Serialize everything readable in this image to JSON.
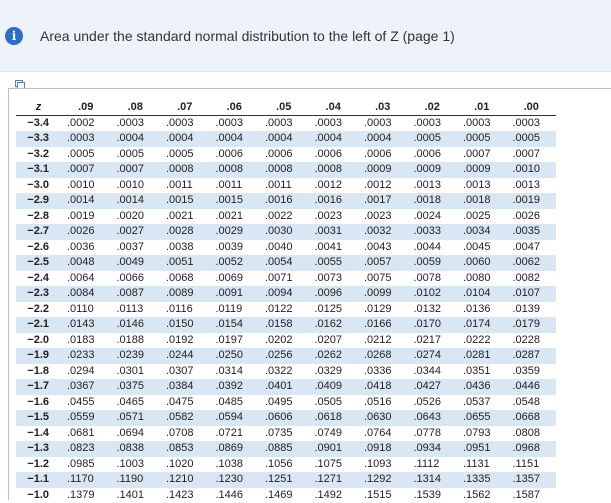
{
  "header": {
    "title": "Area under the standard normal distribution to the left of Z (page 1)",
    "icon": "info-icon",
    "accent": "#2c6fc7"
  },
  "table": {
    "columns": [
      "z",
      ".09",
      ".08",
      ".07",
      ".06",
      ".05",
      ".04",
      ".03",
      ".02",
      ".01",
      ".00"
    ],
    "rows": [
      [
        "−3.4",
        ".0002",
        ".0003",
        ".0003",
        ".0003",
        ".0003",
        ".0003",
        ".0003",
        ".0003",
        ".0003",
        ".0003"
      ],
      [
        "−3.3",
        ".0003",
        ".0004",
        ".0004",
        ".0004",
        ".0004",
        ".0004",
        ".0004",
        ".0005",
        ".0005",
        ".0005"
      ],
      [
        "−3.2",
        ".0005",
        ".0005",
        ".0005",
        ".0006",
        ".0006",
        ".0006",
        ".0006",
        ".0006",
        ".0007",
        ".0007"
      ],
      [
        "−3.1",
        ".0007",
        ".0007",
        ".0008",
        ".0008",
        ".0008",
        ".0008",
        ".0009",
        ".0009",
        ".0009",
        ".0010"
      ],
      [
        "−3.0",
        ".0010",
        ".0010",
        ".0011",
        ".0011",
        ".0011",
        ".0012",
        ".0012",
        ".0013",
        ".0013",
        ".0013"
      ],
      [
        "−2.9",
        ".0014",
        ".0014",
        ".0015",
        ".0015",
        ".0016",
        ".0016",
        ".0017",
        ".0018",
        ".0018",
        ".0019"
      ],
      [
        "−2.8",
        ".0019",
        ".0020",
        ".0021",
        ".0021",
        ".0022",
        ".0023",
        ".0023",
        ".0024",
        ".0025",
        ".0026"
      ],
      [
        "−2.7",
        ".0026",
        ".0027",
        ".0028",
        ".0029",
        ".0030",
        ".0031",
        ".0032",
        ".0033",
        ".0034",
        ".0035"
      ],
      [
        "−2.6",
        ".0036",
        ".0037",
        ".0038",
        ".0039",
        ".0040",
        ".0041",
        ".0043",
        ".0044",
        ".0045",
        ".0047"
      ],
      [
        "−2.5",
        ".0048",
        ".0049",
        ".0051",
        ".0052",
        ".0054",
        ".0055",
        ".0057",
        ".0059",
        ".0060",
        ".0062"
      ],
      [
        "−2.4",
        ".0064",
        ".0066",
        ".0068",
        ".0069",
        ".0071",
        ".0073",
        ".0075",
        ".0078",
        ".0080",
        ".0082"
      ],
      [
        "−2.3",
        ".0084",
        ".0087",
        ".0089",
        ".0091",
        ".0094",
        ".0096",
        ".0099",
        ".0102",
        ".0104",
        ".0107"
      ],
      [
        "−2.2",
        ".0110",
        ".0113",
        ".0116",
        ".0119",
        ".0122",
        ".0125",
        ".0129",
        ".0132",
        ".0136",
        ".0139"
      ],
      [
        "−2.1",
        ".0143",
        ".0146",
        ".0150",
        ".0154",
        ".0158",
        ".0162",
        ".0166",
        ".0170",
        ".0174",
        ".0179"
      ],
      [
        "−2.0",
        ".0183",
        ".0188",
        ".0192",
        ".0197",
        ".0202",
        ".0207",
        ".0212",
        ".0217",
        ".0222",
        ".0228"
      ],
      [
        "−1.9",
        ".0233",
        ".0239",
        ".0244",
        ".0250",
        ".0256",
        ".0262",
        ".0268",
        ".0274",
        ".0281",
        ".0287"
      ],
      [
        "−1.8",
        ".0294",
        ".0301",
        ".0307",
        ".0314",
        ".0322",
        ".0329",
        ".0336",
        ".0344",
        ".0351",
        ".0359"
      ],
      [
        "−1.7",
        ".0367",
        ".0375",
        ".0384",
        ".0392",
        ".0401",
        ".0409",
        ".0418",
        ".0427",
        ".0436",
        ".0446"
      ],
      [
        "−1.6",
        ".0455",
        ".0465",
        ".0475",
        ".0485",
        ".0495",
        ".0505",
        ".0516",
        ".0526",
        ".0537",
        ".0548"
      ],
      [
        "−1.5",
        ".0559",
        ".0571",
        ".0582",
        ".0594",
        ".0606",
        ".0618",
        ".0630",
        ".0643",
        ".0655",
        ".0668"
      ],
      [
        "−1.4",
        ".0681",
        ".0694",
        ".0708",
        ".0721",
        ".0735",
        ".0749",
        ".0764",
        ".0778",
        ".0793",
        ".0808"
      ],
      [
        "−1.3",
        ".0823",
        ".0838",
        ".0853",
        ".0869",
        ".0885",
        ".0901",
        ".0918",
        ".0934",
        ".0951",
        ".0968"
      ],
      [
        "−1.2",
        ".0985",
        ".1003",
        ".1020",
        ".1038",
        ".1056",
        ".1075",
        ".1093",
        ".1112",
        ".1131",
        ".1151"
      ],
      [
        "−1.1",
        ".1170",
        ".1190",
        ".1210",
        ".1230",
        ".1251",
        ".1271",
        ".1292",
        ".1314",
        ".1335",
        ".1357"
      ],
      [
        "−1.0",
        ".1379",
        ".1401",
        ".1423",
        ".1446",
        ".1469",
        ".1492",
        ".1515",
        ".1539",
        ".1562",
        ".1587"
      ]
    ],
    "stripe_color": "#d9e6f3"
  }
}
